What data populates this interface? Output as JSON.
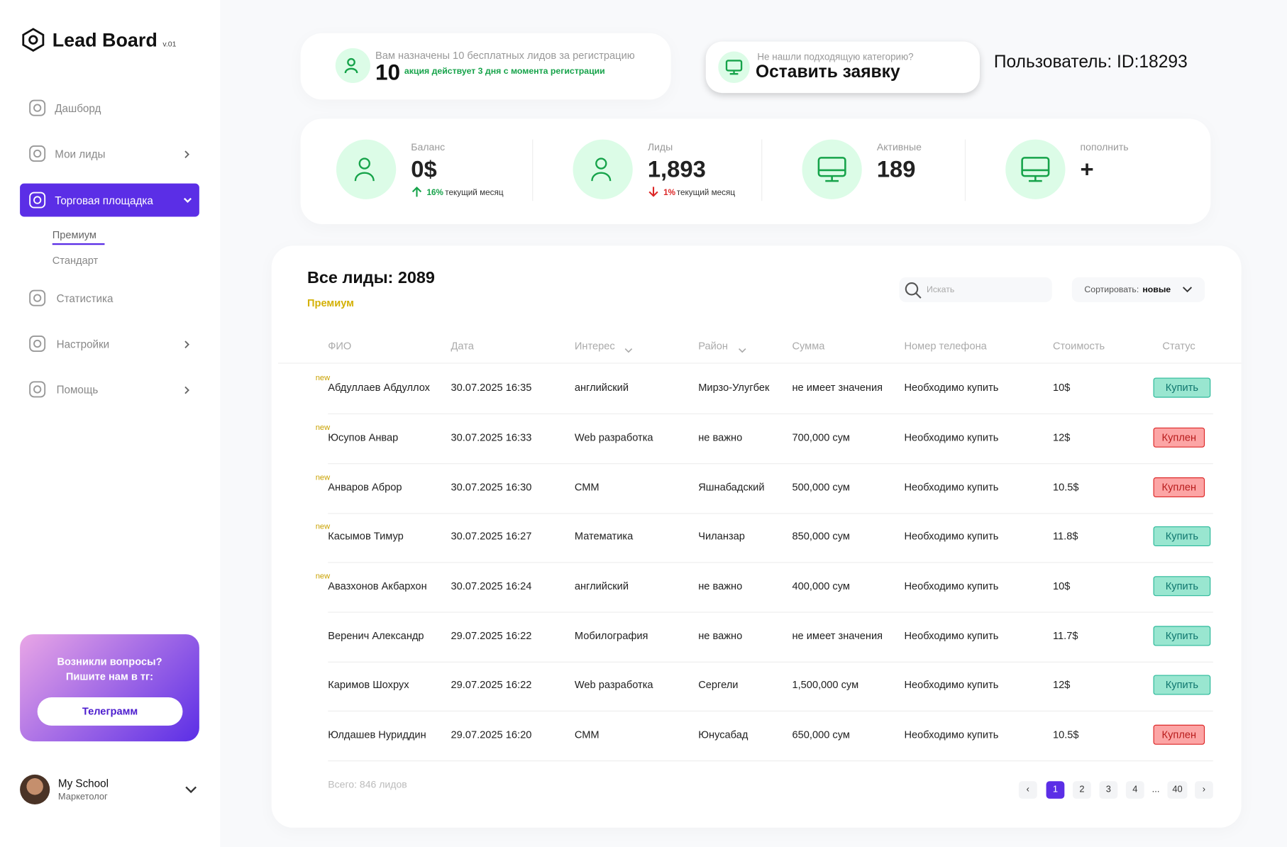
{
  "sidebar": {
    "logo": "Lead Board",
    "version": "v.01",
    "menu": [
      {
        "label": "Дашборд",
        "y": 130
      },
      {
        "label": "Мои лиды",
        "arrow": true
      },
      {
        "label": "Торговая площадка",
        "active": true
      },
      {
        "label": "Статистика"
      },
      {
        "label": "Настройки",
        "arrow": true
      },
      {
        "label": "Помощь",
        "arrow": true
      }
    ],
    "submenu": [
      "Премиум",
      "Стандарт"
    ],
    "help": {
      "text": "Возникли вопросы? Пишите нам в тг:",
      "button": "Телеграмм"
    },
    "profile": {
      "name": "My School",
      "role": "Маркетолог"
    }
  },
  "promo": {
    "text": "Вам назначены 10 бесплатных лидов за регистрацию",
    "number": "10",
    "note": "акция действует 3 дня с момента регистрации"
  },
  "request": {
    "question": "Не нашли подходящую категорию?",
    "action": "Оставить заявку"
  },
  "user": "Пользователь: ID:18293",
  "stats": [
    {
      "label": "Баланс",
      "value": "0$",
      "trend": {
        "value": "16%",
        "text": "текущий месяц",
        "direction": "up",
        "color": "#16a34a"
      }
    },
    {
      "label": "Лиды",
      "value": "1,893",
      "trend": {
        "value": "1%",
        "text": "текущий месяц",
        "direction": "down",
        "color": "#dc2626"
      }
    },
    {
      "label": "Активные",
      "value": "189"
    },
    {
      "label": "пополнить",
      "value": "+"
    }
  ],
  "table": {
    "title": "Все лиды: 2089",
    "subtitle": "Премиум",
    "search": "Искать",
    "sort_label": "Сортировать:",
    "sort_value": "новые",
    "columns": [
      "ФИО",
      "Дата",
      "Интерес",
      "Район",
      "Сумма",
      "Номер телефона",
      "Стоимость",
      "Статус"
    ],
    "rows": [
      {
        "badge": "new",
        "cells": [
          "Абдуллаев Абдуллох",
          "30.07.2025 16:35",
          "английский",
          "Мирзо-Улугбек",
          "не имеет значения",
          "Необходимо купить",
          "10$"
        ],
        "status": {
          "label": "Купить",
          "color": "#0f766e",
          "bg": "#99e6d0",
          "border": "#2bb99a"
        }
      },
      {
        "badge": "new",
        "cells": [
          "Юсупов Анвар",
          "30.07.2025 16:33",
          "Web разработка",
          "не важно",
          "700,000 сум",
          "Необходимо купить",
          "12$"
        ],
        "status": {
          "label": "Куплен",
          "color": "#b91c1c",
          "bg": "#fca5a5",
          "border": "#dc2626"
        }
      },
      {
        "badge": "new",
        "cells": [
          "Анваров Аброр",
          "30.07.2025 16:30",
          "СММ",
          "Яшнабадский",
          "500,000 сум",
          "Необходимо купить",
          "10.5$"
        ],
        "status": {
          "label": "Куплен",
          "color": "#b91c1c",
          "bg": "#fca5a5",
          "border": "#dc2626"
        }
      },
      {
        "badge": "new",
        "cells": [
          "Касымов Тимур",
          "30.07.2025 16:27",
          "Математика",
          "Чиланзар",
          "850,000 сум",
          "Необходимо купить",
          "11.8$"
        ],
        "status": {
          "label": "Купить",
          "color": "#0f766e",
          "bg": "#99e6d0",
          "border": "#2bb99a"
        }
      },
      {
        "badge": "new",
        "cells": [
          "Авазхонов Акбархон",
          "30.07.2025 16:24",
          "английский",
          "не важно",
          "400,000 сум",
          "Необходимо купить",
          "10$"
        ],
        "status": {
          "label": "Купить",
          "color": "#0f766e",
          "bg": "#99e6d0",
          "border": "#2bb99a"
        }
      },
      {
        "cells": [
          "Веренич Александр",
          "29.07.2025 16:22",
          "Мобилография",
          "не важно",
          "не имеет значения",
          "Необходимо купить",
          "11.7$"
        ],
        "status": {
          "label": "Купить",
          "color": "#0f766e",
          "bg": "#99e6d0",
          "border": "#2bb99a"
        }
      },
      {
        "cells": [
          "Каримов Шохрух",
          "29.07.2025 16:22",
          "Web разработка",
          "Сергели",
          "1,500,000 сум",
          "Необходимо купить",
          "12$"
        ],
        "status": {
          "label": "Купить",
          "color": "#0f766e",
          "bg": "#99e6d0",
          "border": "#2bb99a"
        }
      },
      {
        "cells": [
          "Юлдашев Нуриддин",
          "29.07.2025 16:20",
          "СММ",
          "Юнусабад",
          "650,000 сум",
          "Необходимо купить",
          "10.5$"
        ],
        "status": {
          "label": "Куплен",
          "color": "#b91c1c",
          "bg": "#fca5a5",
          "border": "#dc2626"
        }
      }
    ],
    "total": "Всего: 846 лидов",
    "pagination": [
      {
        "label": "‹"
      },
      {
        "label": "1",
        "active": true
      },
      {
        "label": "2"
      },
      {
        "label": "3"
      },
      {
        "label": "4"
      },
      {
        "label": "...",
        "plain": true
      },
      {
        "label": "40"
      },
      {
        "label": "›"
      }
    ]
  }
}
